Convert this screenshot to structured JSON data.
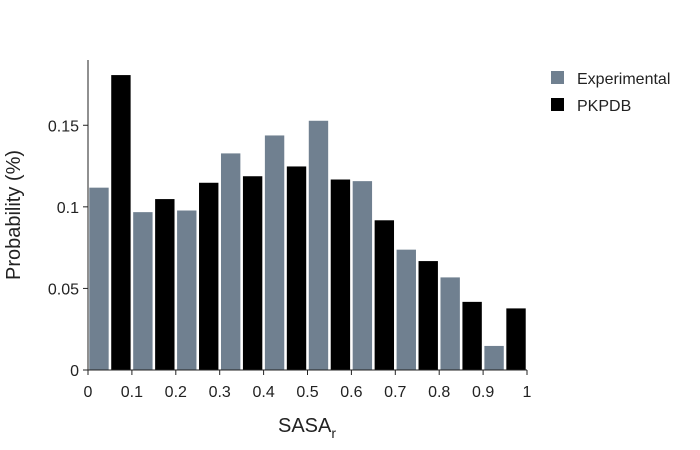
{
  "chart_data": {
    "type": "bar",
    "x_edges": [
      0,
      0.1,
      0.2,
      0.3,
      0.4,
      0.5,
      0.6,
      0.7,
      0.8,
      0.9,
      1
    ],
    "xticks": [
      "0",
      "0.1",
      "0.2",
      "0.3",
      "0.4",
      "0.5",
      "0.6",
      "0.7",
      "0.8",
      "0.9",
      "1"
    ],
    "yticks": [
      0,
      0.05,
      0.1,
      0.15
    ],
    "ytick_labels": [
      "0",
      "0.05",
      "0.1",
      "0.15"
    ],
    "xlim": [
      0,
      1
    ],
    "ylim": [
      0,
      0.19
    ],
    "xlabel_main": "SASA",
    "xlabel_sub": "r",
    "ylabel": "Probability (%)",
    "legend_position": "top-right",
    "grid": false,
    "series": [
      {
        "name": "Experimental",
        "color": "#708090",
        "values": [
          0.112,
          0.097,
          0.098,
          0.133,
          0.144,
          0.153,
          0.116,
          0.074,
          0.057,
          0.015
        ]
      },
      {
        "name": "PKPDB",
        "color": "#000000",
        "values": [
          0.181,
          0.105,
          0.115,
          0.119,
          0.125,
          0.117,
          0.092,
          0.067,
          0.042,
          0.038
        ]
      }
    ]
  }
}
